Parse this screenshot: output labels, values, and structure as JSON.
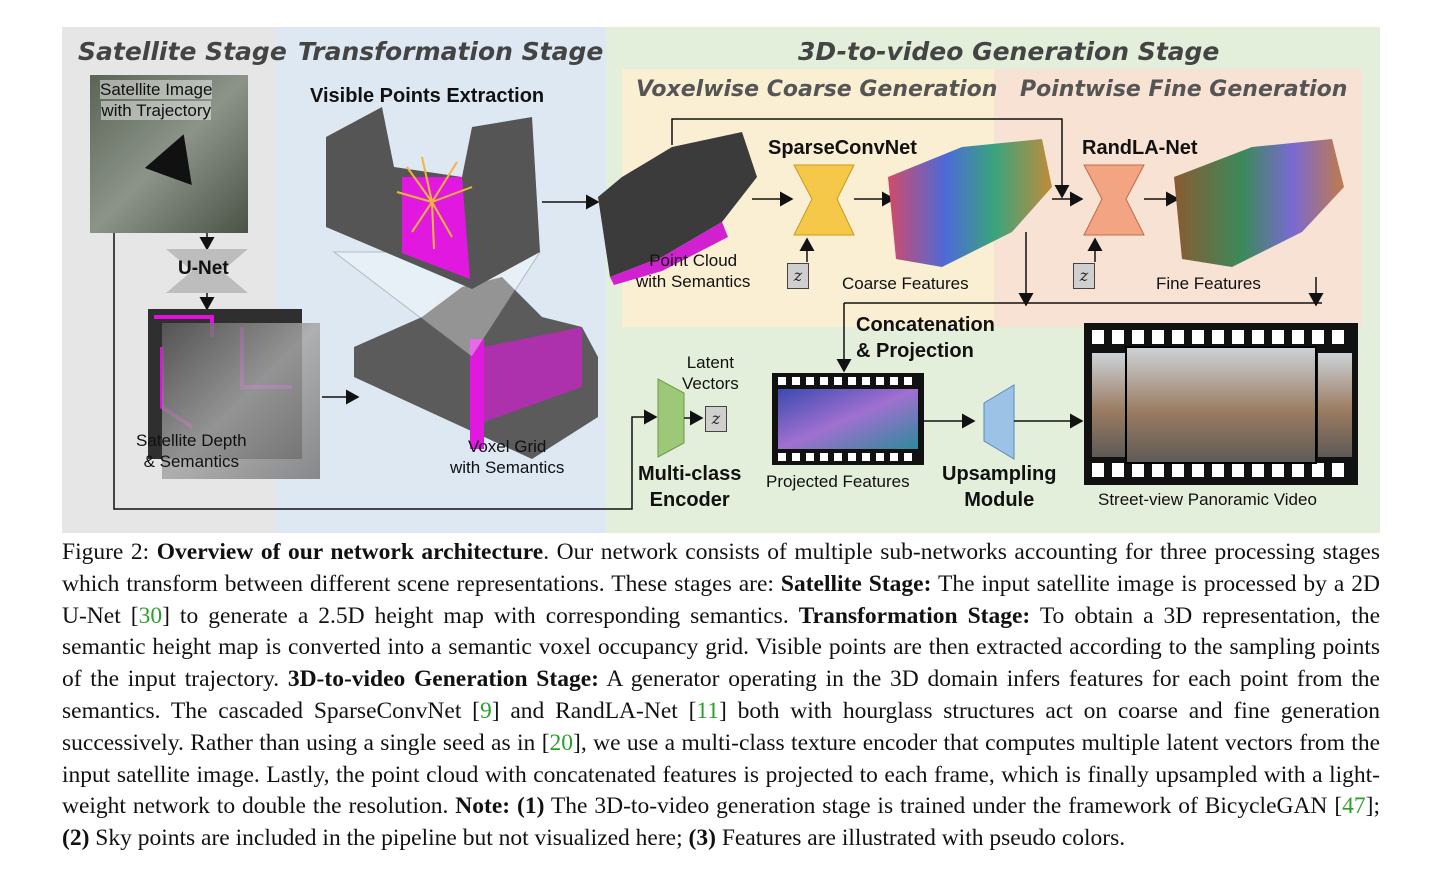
{
  "figure": {
    "stages": {
      "satellite": "Satellite Stage",
      "transformation": "Transformation Stage",
      "generation": "3D-to-video Generation Stage"
    },
    "substages": {
      "coarse": "Voxelwise Coarse Generation",
      "fine": "Pointwise Fine Generation"
    },
    "labels": {
      "satellite_image": "Satellite Image\nwith Trajectory",
      "unet": "U-Net",
      "satellite_depth": "Satellite Depth\n& Semantics",
      "visible_points": "Visible Points Extraction",
      "voxel_grid": "Voxel Grid\nwith Semantics",
      "point_cloud": "Point Cloud\nwith Semantics",
      "sparseconvnet": "SparseConvNet",
      "coarse_features": "Coarse Features",
      "randlanet": "RandLA-Net",
      "fine_features": "Fine Features",
      "concat": "Concatenation\n& Projection",
      "latent": "Latent\nVectors",
      "encoder": "Multi-class\nEncoder",
      "projected": "Projected Features",
      "upsampling": "Upsampling\nModule",
      "video": "Street-view Panoramic Video",
      "z": "z"
    }
  },
  "caption": {
    "fig_label": "Figure 2:",
    "title": "Overview of our network architecture",
    "t1": ". Our network consists of multiple sub-networks accounting for three processing stages which transform between different scene representations. These stages are: ",
    "b1": "Satellite Stage:",
    "t2": " The input satellite image is processed by a 2D U-Net [",
    "c30": "30",
    "t3": "] to generate a 2.5D height map with corresponding semantics. ",
    "b2": "Transformation Stage:",
    "t4": " To obtain a 3D representation, the semantic height map is converted into a semantic voxel occupancy grid. Visible points are then extracted according to the sampling points of the input trajectory. ",
    "b3": "3D-to-video Generation Stage:",
    "t5": " A generator operating in the 3D domain infers features for each point from the semantics. The cascaded SparseConvNet [",
    "c9": "9",
    "t6": "] and RandLA-Net [",
    "c11": "11",
    "t7": "] both with hourglass structures act on coarse and fine generation successively. Rather than using a single seed as in [",
    "c20": "20",
    "t8": "], we use a multi-class texture encoder that computes multiple latent vectors from the input satellite image. Lastly, the point cloud with concatenated features is projected to each frame, which is finally upsampled with a light-weight network to double the resolution. ",
    "b4": "Note:",
    "n1": " (1)",
    "t9": " The 3D-to-video generation stage is trained under the framework of BicycleGAN [",
    "c47": "47",
    "t10": "]; ",
    "n2": "(2)",
    "t11": " Sky points are included in the pipeline but not visualized here; ",
    "n3": "(3)",
    "t12": " Features are illustrated with pseudo colors."
  }
}
